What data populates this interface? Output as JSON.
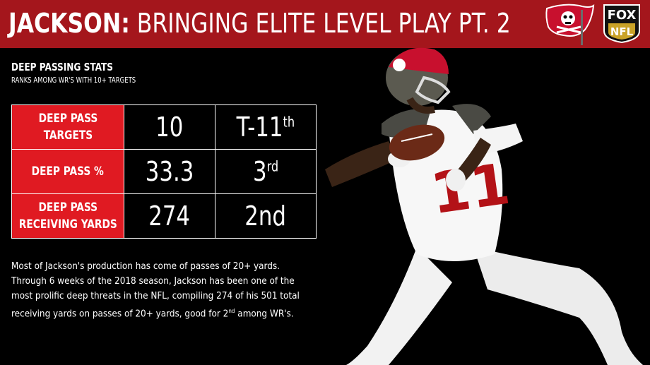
{
  "header": {
    "title_bold": "JACKSON:",
    "title_rest": " BRINGING ELITE LEVEL PLAY PT. 2",
    "brand_color": "#a4161c"
  },
  "logos": {
    "fox_line1": "FOX",
    "fox_line2": "NFL"
  },
  "section": {
    "heading": "DEEP PASSING STATS",
    "subheading": "RANKS AMONG WR'S WITH 10+ TARGETS"
  },
  "stats": {
    "accent_color": "#e01a22",
    "rows": [
      {
        "label_line1": "DEEP PASS",
        "label_line2": "TARGETS",
        "value": "10",
        "rank": "T-11",
        "rank_suffix": "th"
      },
      {
        "label_line1": "DEEP PASS %",
        "label_line2": "",
        "value": "33.3",
        "rank": "3",
        "rank_suffix": "rd"
      },
      {
        "label_line1": "DEEP PASS",
        "label_line2": "RECEIVING YARDS",
        "value": "274",
        "rank": "2nd",
        "rank_suffix": ""
      }
    ]
  },
  "body": {
    "text_before": "Most of Jackson's production has come of passes of 20+ yards. Through 6 weeks of the 2018 season, Jackson has been one of the most prolific deep threats in the NFL, compiling 274 of his 501 total receiving yards on passes of 20+ yards, good for 2",
    "text_sup": "nd",
    "text_after": " among WR's."
  },
  "icons": {
    "team_logo": "buccaneers-flag-icon",
    "network_logo": "fox-nfl-shield-icon",
    "player_photo": "player-catching-football-image"
  }
}
